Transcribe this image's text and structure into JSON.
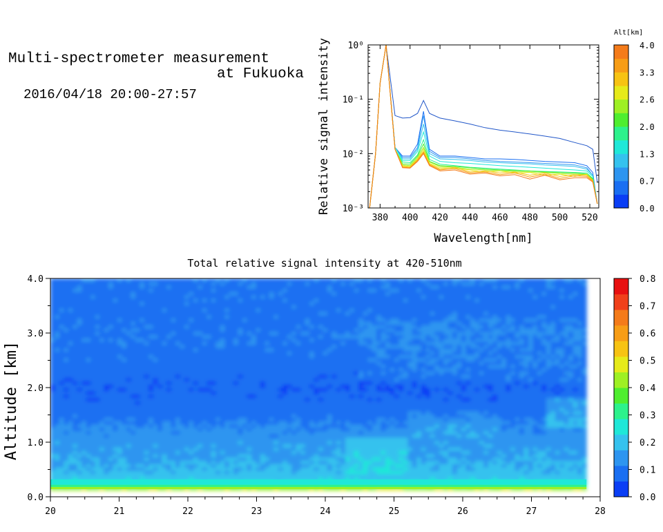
{
  "header": {
    "title_line1": "Multi-spectrometer measurement",
    "title_line2": "at Fukuoka",
    "datetime": "2016/04/18 20:00-27:57"
  },
  "chart_data": [
    {
      "type": "line",
      "title": "",
      "xlabel": "Wavelength[nm]",
      "ylabel": "Relative signal intensity",
      "xlim": [
        372,
        526
      ],
      "ylim": [
        0.001,
        1
      ],
      "yscale": "log",
      "x_ticks": [
        "380",
        "400",
        "420",
        "440",
        "460",
        "480",
        "500",
        "520"
      ],
      "y_ticks": [
        "10⁻³",
        "10⁻²",
        "10⁻¹",
        "10⁰"
      ],
      "colorbar": {
        "label": "Alt[km]",
        "ticks": [
          "0.0",
          "0.7",
          "1.3",
          "2.0",
          "2.6",
          "3.3",
          "4.0"
        ],
        "colors": [
          "#0a3ef5",
          "#1a6ff2",
          "#2d95f0",
          "#35c2ee",
          "#1fe8d8",
          "#2df28c",
          "#4fee2f",
          "#9ef024",
          "#e6ea1a",
          "#f7c313",
          "#f79d16",
          "#f47b1a"
        ]
      },
      "x": [
        373,
        377,
        380,
        384,
        390,
        395,
        400,
        405,
        409,
        413,
        420,
        430,
        440,
        450,
        460,
        470,
        480,
        490,
        500,
        510,
        518,
        522,
        525
      ],
      "series": [
        {
          "color": "#1f55c8",
          "values": [
            0.001,
            0.01,
            0.2,
            1.0,
            0.05,
            0.045,
            0.046,
            0.055,
            0.095,
            0.055,
            0.045,
            0.04,
            0.035,
            0.03,
            0.027,
            0.025,
            0.023,
            0.021,
            0.019,
            0.016,
            0.014,
            0.012,
            0.003
          ]
        },
        {
          "color": "#1a6ff2",
          "values": [
            0.001,
            0.01,
            0.2,
            1.0,
            0.013,
            0.009,
            0.009,
            0.015,
            0.06,
            0.012,
            0.009,
            0.009,
            0.0085,
            0.008,
            0.008,
            0.0078,
            0.0075,
            0.0072,
            0.007,
            0.0068,
            0.006,
            0.0045,
            0.0012
          ]
        },
        {
          "color": "#2d95f0",
          "values": [
            0.001,
            0.01,
            0.2,
            1.0,
            0.013,
            0.0085,
            0.0085,
            0.013,
            0.05,
            0.011,
            0.0085,
            0.0085,
            0.008,
            0.0075,
            0.0072,
            0.007,
            0.0068,
            0.0066,
            0.0064,
            0.0062,
            0.0055,
            0.004,
            0.0012
          ]
        },
        {
          "color": "#35c2ee",
          "values": [
            0.001,
            0.01,
            0.2,
            1.0,
            0.013,
            0.008,
            0.008,
            0.012,
            0.035,
            0.01,
            0.008,
            0.0078,
            0.0075,
            0.007,
            0.0068,
            0.0066,
            0.0065,
            0.0062,
            0.006,
            0.0058,
            0.0052,
            0.004,
            0.0012
          ]
        },
        {
          "color": "#1fe8d8",
          "values": [
            0.001,
            0.01,
            0.2,
            1.0,
            0.013,
            0.0075,
            0.0075,
            0.011,
            0.025,
            0.009,
            0.0072,
            0.0068,
            0.0066,
            0.0063,
            0.006,
            0.0058,
            0.0056,
            0.0054,
            0.0052,
            0.005,
            0.0048,
            0.0038,
            0.0012
          ]
        },
        {
          "color": "#2df28c",
          "values": [
            0.001,
            0.01,
            0.2,
            1.0,
            0.012,
            0.007,
            0.0068,
            0.0095,
            0.018,
            0.0078,
            0.0064,
            0.006,
            0.0056,
            0.0054,
            0.0052,
            0.005,
            0.0048,
            0.0047,
            0.0046,
            0.0045,
            0.0044,
            0.0035,
            0.0012
          ]
        },
        {
          "color": "#4fee2f",
          "values": [
            0.001,
            0.01,
            0.2,
            1.0,
            0.012,
            0.0065,
            0.0064,
            0.009,
            0.015,
            0.0072,
            0.006,
            0.0058,
            0.0055,
            0.0052,
            0.005,
            0.0049,
            0.0048,
            0.0046,
            0.0045,
            0.0044,
            0.0042,
            0.0034,
            0.0012
          ]
        },
        {
          "color": "#9ef024",
          "values": [
            0.001,
            0.01,
            0.2,
            1.0,
            0.012,
            0.0062,
            0.006,
            0.0085,
            0.013,
            0.007,
            0.0058,
            0.0056,
            0.0052,
            0.005,
            0.0048,
            0.0047,
            0.0046,
            0.0045,
            0.0043,
            0.0042,
            0.0041,
            0.0033,
            0.0012
          ]
        },
        {
          "color": "#e6ea1a",
          "values": [
            0.001,
            0.01,
            0.2,
            1.0,
            0.012,
            0.006,
            0.0058,
            0.008,
            0.012,
            0.0066,
            0.0055,
            0.0054,
            0.005,
            0.0046,
            0.0048,
            0.0044,
            0.0045,
            0.004,
            0.0042,
            0.0038,
            0.0042,
            0.0032,
            0.0012
          ]
        },
        {
          "color": "#f7c313",
          "values": [
            0.001,
            0.01,
            0.2,
            1.0,
            0.012,
            0.0058,
            0.0056,
            0.0078,
            0.011,
            0.0064,
            0.0052,
            0.0056,
            0.0046,
            0.0048,
            0.0044,
            0.0046,
            0.004,
            0.0044,
            0.0038,
            0.0041,
            0.004,
            0.0032,
            0.0012
          ]
        },
        {
          "color": "#f79d16",
          "values": [
            0.001,
            0.01,
            0.2,
            1.0,
            0.012,
            0.0056,
            0.0055,
            0.0075,
            0.0105,
            0.0062,
            0.005,
            0.0053,
            0.0044,
            0.0046,
            0.0041,
            0.0044,
            0.0037,
            0.0042,
            0.0035,
            0.0039,
            0.0038,
            0.0031,
            0.0012
          ]
        },
        {
          "color": "#f47b1a",
          "values": [
            0.001,
            0.01,
            0.2,
            1.0,
            0.012,
            0.0055,
            0.0054,
            0.0072,
            0.01,
            0.006,
            0.0048,
            0.005,
            0.0042,
            0.0044,
            0.0039,
            0.0041,
            0.0034,
            0.004,
            0.0033,
            0.0036,
            0.0036,
            0.003,
            0.0012
          ]
        }
      ]
    },
    {
      "type": "heatmap",
      "title": "Total relative signal intensity at 420-510nm",
      "xlabel": "",
      "ylabel": "Altitude [km]",
      "xlim": [
        20,
        28
      ],
      "ylim": [
        0,
        4
      ],
      "x_ticks": [
        "20",
        "21",
        "22",
        "23",
        "24",
        "25",
        "26",
        "27",
        "28"
      ],
      "y_ticks": [
        "0.0",
        "1.0",
        "2.0",
        "3.0",
        "4.0"
      ],
      "data_x_range": [
        20,
        27.8
      ],
      "colorbar": {
        "ticks": [
          "0.0",
          "0.1",
          "0.2",
          "0.3",
          "0.4",
          "0.5",
          "0.6",
          "0.7",
          "0.8"
        ],
        "colors": [
          "#0a3ef5",
          "#1a6ff2",
          "#2d95f0",
          "#35c2ee",
          "#1fe8d8",
          "#2df28c",
          "#4fee2f",
          "#9ef024",
          "#e6ea1a",
          "#f7c313",
          "#f79d16",
          "#f47b1a",
          "#f0401a",
          "#e81010"
        ]
      },
      "altitude_profile": [
        {
          "alt": 0.15,
          "value": 0.45
        },
        {
          "alt": 0.2,
          "value": 0.3
        },
        {
          "alt": 0.3,
          "value": 0.22
        },
        {
          "alt": 0.5,
          "value": 0.18
        },
        {
          "alt": 0.8,
          "value": 0.16
        },
        {
          "alt": 1.0,
          "value": 0.15
        },
        {
          "alt": 1.3,
          "value": 0.12
        },
        {
          "alt": 1.5,
          "value": 0.09
        },
        {
          "alt": 2.0,
          "value": 0.07
        },
        {
          "alt": 2.5,
          "value": 0.09
        },
        {
          "alt": 3.0,
          "value": 0.1
        },
        {
          "alt": 3.5,
          "value": 0.09
        },
        {
          "alt": 4.0,
          "value": 0.1
        }
      ]
    }
  ]
}
